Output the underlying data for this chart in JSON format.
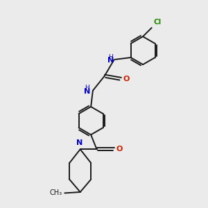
{
  "background_color": "#ebebeb",
  "bond_color": "#1a1a1a",
  "atom_colors": {
    "N": "#0000cc",
    "O": "#cc2200",
    "Cl": "#228800",
    "C": "#1a1a1a",
    "H": "#447799"
  },
  "figsize": [
    3.0,
    3.0
  ],
  "dpi": 100
}
